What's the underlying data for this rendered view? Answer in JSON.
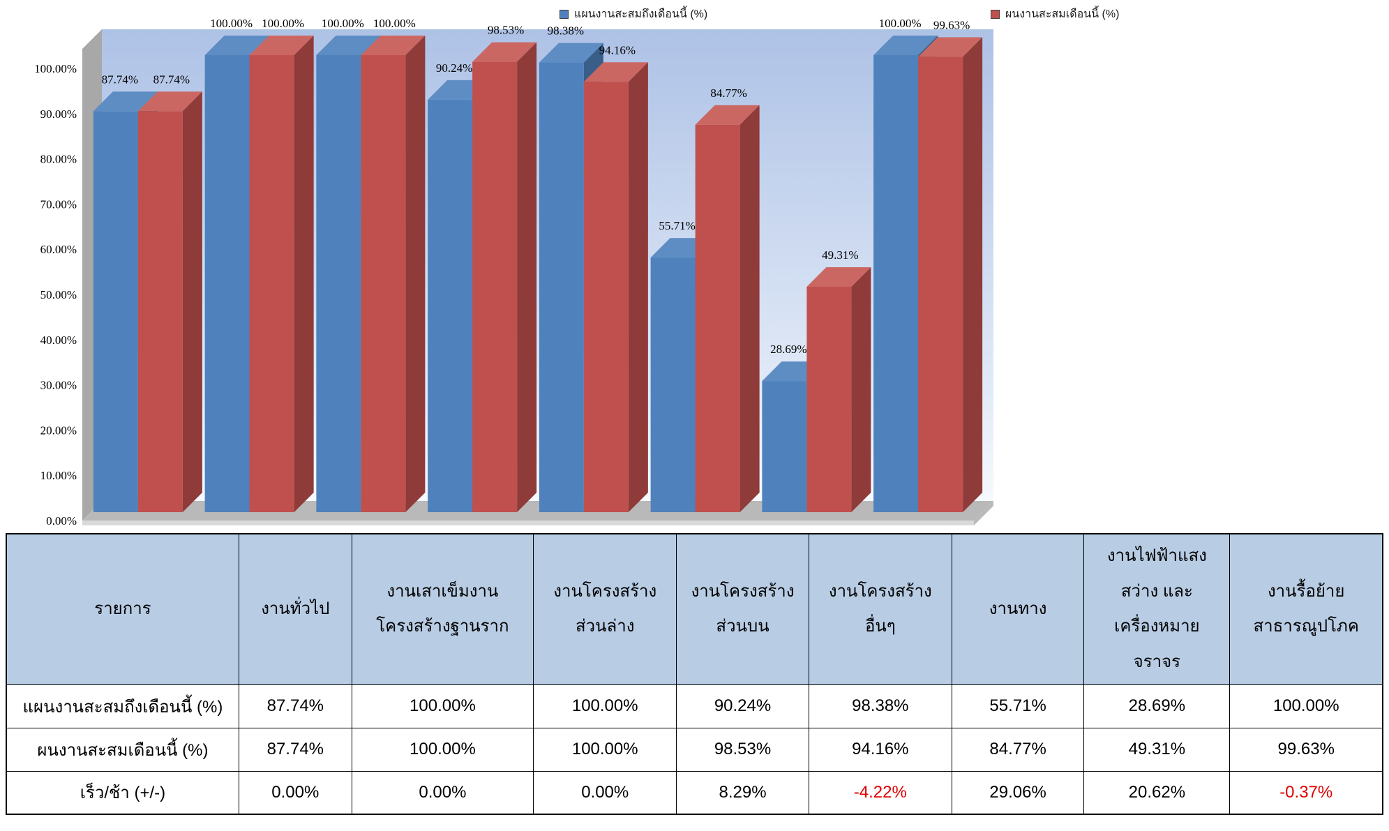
{
  "chart_data": {
    "type": "bar",
    "style": "3d-clustered-column",
    "title": "",
    "xlabel": "",
    "ylabel": "",
    "ylim": [
      0,
      100
    ],
    "grid": false,
    "legend_position": "top",
    "y_ticks": [
      "0.00%",
      "10.00%",
      "20.00%",
      "30.00%",
      "40.00%",
      "50.00%",
      "60.00%",
      "70.00%",
      "80.00%",
      "90.00%",
      "100.00%"
    ],
    "categories": [
      "งานทั่วไป",
      "งานเสาเข็มงาน โครงสร้างฐานราก",
      "งานโครงสร้าง ส่วนล่าง",
      "งานโครงสร้าง ส่วนบน",
      "งานโครงสร้าง อื่นๆ",
      "งานทาง",
      "งานไฟฟ้าแสง สว่าง และ เครื่องหมาย จราจร",
      "งานรื้อย้าย สาธารณูปโภค"
    ],
    "series": [
      {
        "name": "แผนงานสะสมถึงเดือนนี้ (%)",
        "color": "#4F81BD",
        "color_top": "#5E8DC4",
        "color_side": "#395E88",
        "values": [
          87.74,
          100.0,
          100.0,
          90.24,
          98.38,
          55.71,
          28.69,
          100.0
        ],
        "labels": [
          "87.74%",
          "100.00%",
          "100.00%",
          "90.24%",
          "98.38%",
          "55.71%",
          "28.69%",
          "100.00%"
        ]
      },
      {
        "name": "ผนงานสะสมเดือนนี้ (%)",
        "color": "#C0504D",
        "color_top": "#CB6762",
        "color_side": "#8E3B39",
        "values": [
          87.74,
          100.0,
          100.0,
          98.53,
          94.16,
          84.77,
          49.31,
          99.63
        ],
        "labels": [
          "87.74%",
          "100.00%",
          "100.00%",
          "98.53%",
          "94.16%",
          "84.77%",
          "49.31%",
          "99.63%"
        ]
      }
    ],
    "colors": {
      "back_wall_top": "#AEC2E6",
      "back_wall_bottom": "#F6F9FE",
      "side_wall": "#A8A8A8",
      "floor": "#B9B9B9",
      "floor_edge": "#D9D9D9",
      "label_text": "#000000",
      "tick_text": "#000000"
    }
  },
  "table": {
    "header_bg": "#B8CCE4",
    "negative_color": "#E00000",
    "headers": [
      "รายการ",
      "งานทั่วไป",
      "งานเสาเข็มงาน\nโครงสร้างฐานราก",
      "งานโครงสร้าง\nส่วนล่าง",
      "งานโครงสร้าง\nส่วนบน",
      "งานโครงสร้าง\nอื่นๆ",
      "งานทาง",
      "งานไฟฟ้าแสง\nสว่าง และ\nเครื่องหมาย\nจราจร",
      "งานรื้อย้าย\nสาธารณูปโภค"
    ],
    "rows": [
      {
        "label": "แผนงานสะสมถึงเดือนนี้ (%)",
        "values": [
          "87.74%",
          "100.00%",
          "100.00%",
          "90.24%",
          "98.38%",
          "55.71%",
          "28.69%",
          "100.00%"
        ]
      },
      {
        "label": "ผนงานสะสมเดือนนี้ (%)",
        "values": [
          "87.74%",
          "100.00%",
          "100.00%",
          "98.53%",
          "94.16%",
          "84.77%",
          "49.31%",
          "99.63%"
        ]
      },
      {
        "label": "เร็ว/ช้า (+/-)",
        "values": [
          "0.00%",
          "0.00%",
          "0.00%",
          "8.29%",
          "-4.22%",
          "29.06%",
          "20.62%",
          "-0.37%"
        ]
      }
    ]
  }
}
